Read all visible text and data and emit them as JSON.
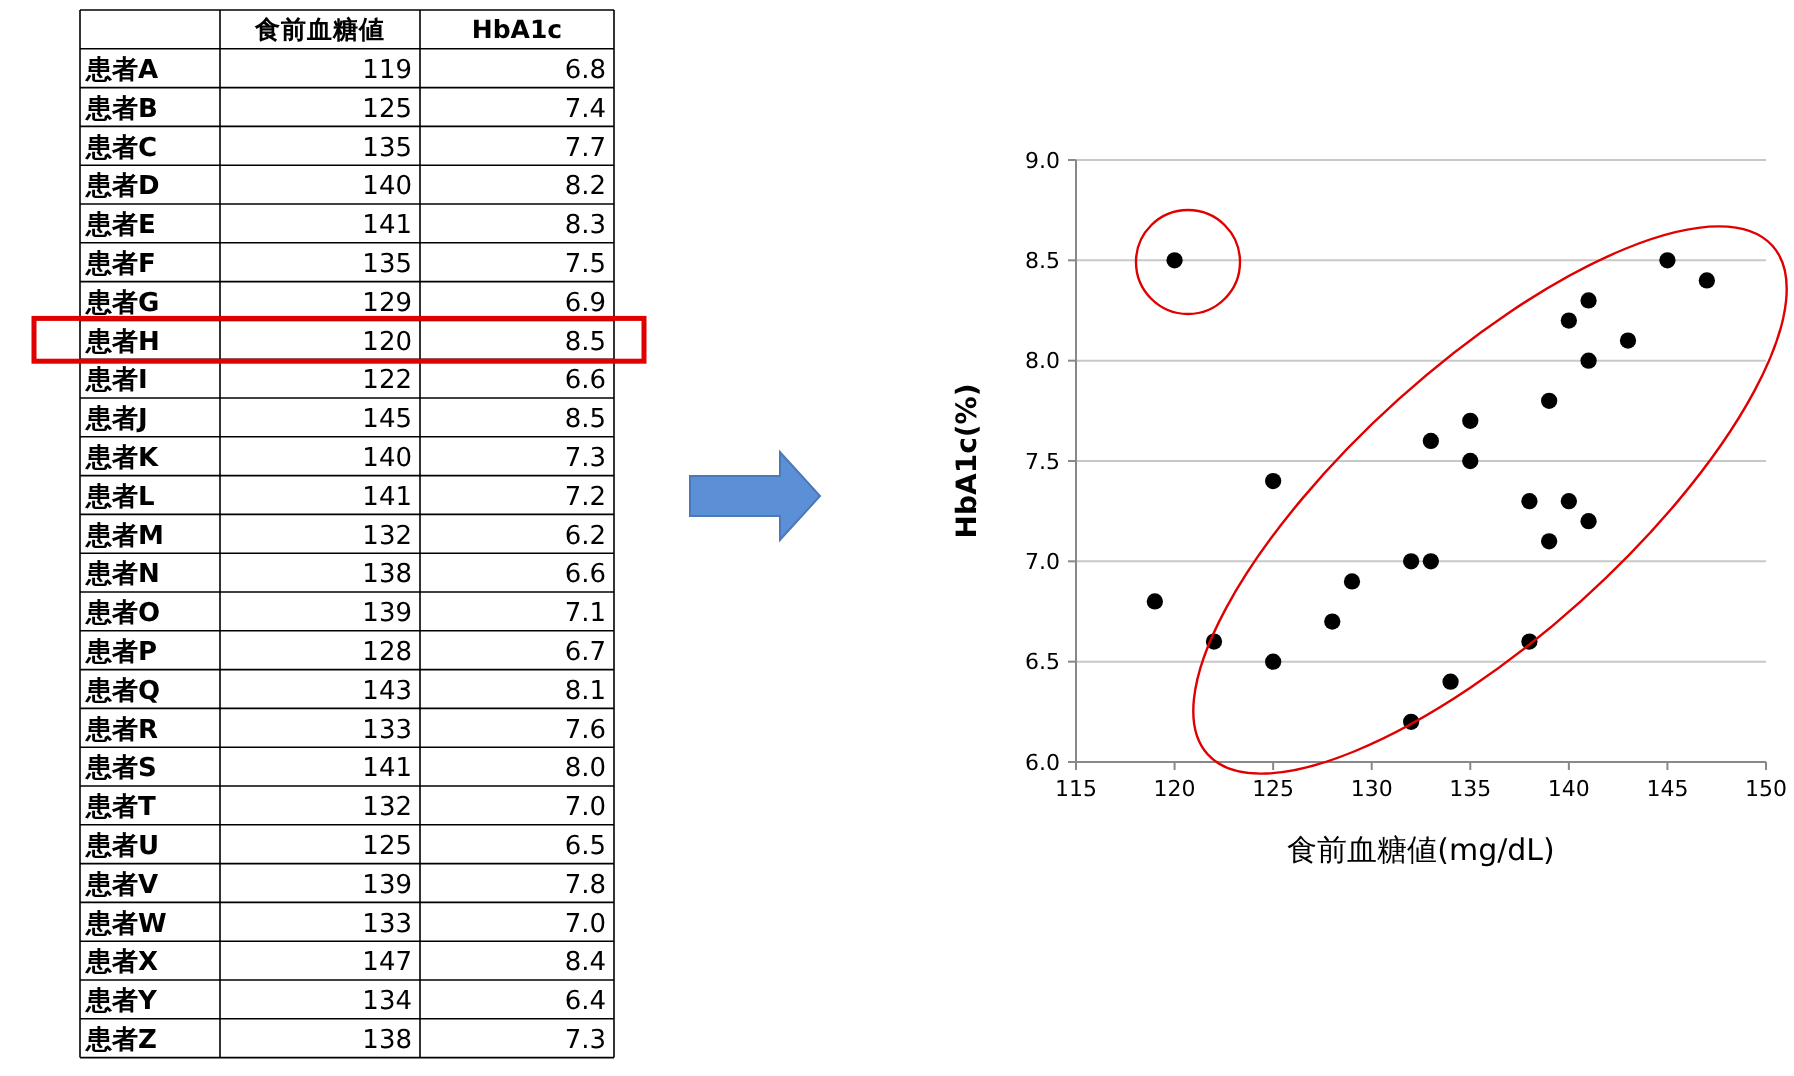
{
  "chart_data": [
    {
      "type": "other",
      "data_labels": true,
      "categories": [
        "患者A",
        "患者B",
        "患者C",
        "患者D",
        "患者E",
        "患者F",
        "患者G",
        "患者H",
        "患者I",
        "患者J",
        "患者K",
        "患者L",
        "患者M",
        "患者N",
        "患者O",
        "患者P",
        "患者Q",
        "患者R",
        "患者S",
        "患者T",
        "患者U",
        "患者V",
        "患者W",
        "患者X",
        "患者Y",
        "患者Z"
      ],
      "series": [
        {
          "name": "食前血糖値",
          "values": [
            119,
            125,
            135,
            140,
            141,
            135,
            129,
            120,
            122,
            145,
            140,
            141,
            132,
            138,
            139,
            128,
            143,
            133,
            141,
            132,
            125,
            139,
            133,
            147,
            134,
            138
          ]
        },
        {
          "name": "HbA1c",
          "values": [
            6.8,
            7.4,
            7.7,
            8.2,
            8.3,
            7.5,
            6.9,
            8.5,
            6.6,
            8.5,
            7.3,
            7.2,
            6.2,
            6.6,
            7.1,
            6.7,
            8.1,
            7.6,
            8.0,
            7.0,
            6.5,
            7.8,
            7.0,
            8.4,
            6.4,
            7.3
          ],
          "value_labels": [
            "6.8",
            "7.4",
            "7.7",
            "8.2",
            "8.3",
            "7.5",
            "6.9",
            "8.5",
            "6.6",
            "8.5",
            "7.3",
            "7.2",
            "6.2",
            "6.6",
            "7.1",
            "6.7",
            "8.1",
            "7.6",
            "8.0",
            "7.0",
            "6.5",
            "7.8",
            "7.0",
            "8.4",
            "6.4",
            "7.3"
          ]
        }
      ]
    },
    {
      "type": "scatter",
      "xlabel": "食前血糖値(mg/dL)",
      "ylabel": "HbA1c(%)",
      "x": [
        119,
        125,
        135,
        140,
        141,
        135,
        129,
        120,
        122,
        145,
        140,
        141,
        132,
        138,
        139,
        128,
        143,
        133,
        141,
        132,
        125,
        139,
        133,
        147,
        134,
        138
      ],
      "values": [
        6.8,
        7.4,
        7.7,
        8.2,
        8.3,
        7.5,
        6.9,
        8.5,
        6.6,
        8.5,
        7.3,
        7.2,
        6.2,
        6.6,
        7.1,
        6.7,
        8.1,
        7.6,
        8.0,
        7.0,
        6.5,
        7.8,
        7.0,
        8.4,
        6.4,
        7.3
      ],
      "color": "#000000",
      "marker": "circle",
      "grid": "y",
      "xlim": [
        115,
        150
      ],
      "xticks": [
        115,
        120,
        125,
        130,
        135,
        140,
        145,
        150
      ],
      "ylim": [
        6,
        9
      ],
      "yticks": [
        {
          "value": 6,
          "label": "6.0"
        },
        {
          "value": 6.5,
          "label": "6.5"
        },
        {
          "value": 7,
          "label": "7.0"
        },
        {
          "value": 7.5,
          "label": "7.5"
        },
        {
          "value": 8,
          "label": "8.0"
        },
        {
          "value": 8.5,
          "label": "8.5"
        },
        {
          "value": 9,
          "label": "9.0"
        }
      ]
    }
  ]
}
